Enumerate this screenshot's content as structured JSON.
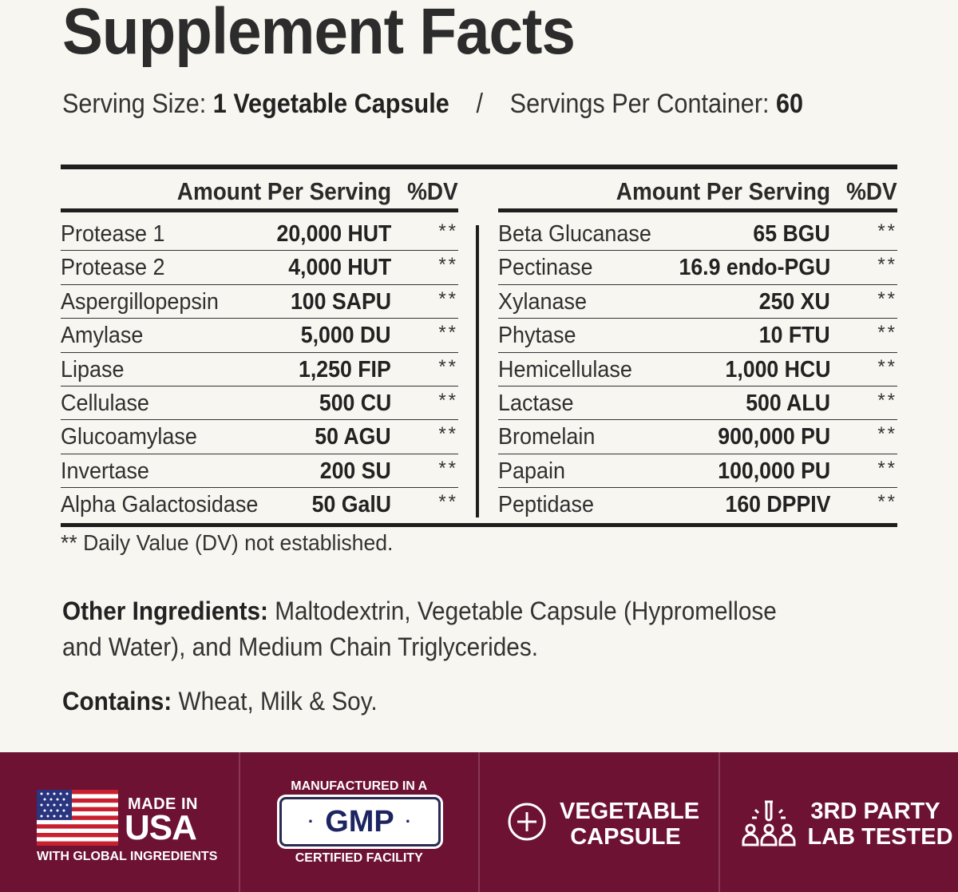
{
  "title": "Supplement Facts",
  "serving": {
    "size_label": "Serving Size:",
    "size_value": "1 Vegetable Capsule",
    "separator": "/",
    "per_container_label": "Servings Per Container:",
    "per_container_value": "60"
  },
  "table": {
    "header_amount": "Amount Per Serving",
    "header_dv": "%DV",
    "left_rows": [
      {
        "name": "Protease 1",
        "amount": "20,000 HUT",
        "dv": "**"
      },
      {
        "name": "Protease 2",
        "amount": "4,000 HUT",
        "dv": "**"
      },
      {
        "name": "Aspergillopepsin",
        "amount": "100 SAPU",
        "dv": "**"
      },
      {
        "name": "Amylase",
        "amount": "5,000 DU",
        "dv": "**"
      },
      {
        "name": "Lipase",
        "amount": "1,250 FIP",
        "dv": "**"
      },
      {
        "name": "Cellulase",
        "amount": "500 CU",
        "dv": "**"
      },
      {
        "name": "Glucoamylase",
        "amount": "50 AGU",
        "dv": "**"
      },
      {
        "name": "Invertase",
        "amount": "200 SU",
        "dv": "**"
      },
      {
        "name": "Alpha Galactosidase",
        "amount": "50 GalU",
        "dv": "**"
      }
    ],
    "right_rows": [
      {
        "name": "Beta Glucanase",
        "amount": "65 BGU",
        "dv": "**"
      },
      {
        "name": "Pectinase",
        "amount": "16.9 endo-PGU",
        "dv": "**"
      },
      {
        "name": "Xylanase",
        "amount": "250 XU",
        "dv": "**"
      },
      {
        "name": "Phytase",
        "amount": "10 FTU",
        "dv": "**"
      },
      {
        "name": "Hemicellulase",
        "amount": "1,000 HCU",
        "dv": "**"
      },
      {
        "name": "Lactase",
        "amount": "500 ALU",
        "dv": "**"
      },
      {
        "name": "Bromelain",
        "amount": "900,000 PU",
        "dv": "**"
      },
      {
        "name": "Papain",
        "amount": "100,000 PU",
        "dv": "**"
      },
      {
        "name": "Peptidase",
        "amount": "160 DPPIV",
        "dv": "**"
      }
    ]
  },
  "footnote": "** Daily Value (DV) not established.",
  "other_ingredients": {
    "label": "Other Ingredients:",
    "text": " Maltodextrin, Vegetable Capsule (Hypromellose and Water), and Medium Chain Triglycerides."
  },
  "contains": {
    "label": "Contains:",
    "text": " Wheat, Milk & Soy."
  },
  "badges": {
    "usa": {
      "made_in": "MADE IN",
      "usa": "USA",
      "global": "WITH GLOBAL INGREDIENTS",
      "icon": "us-flag-icon"
    },
    "gmp": {
      "top": "MANUFACTURED IN A",
      "mark": "GMP",
      "dot": "·",
      "bottom": "CERTIFIED FACILITY"
    },
    "vegetable": {
      "line1": "VEGETABLE",
      "line2": "CAPSULE",
      "icon": "plus-circle-icon"
    },
    "lab": {
      "line1": "3RD PARTY",
      "line2": "LAB TESTED",
      "icon": "lab-people-icon"
    }
  },
  "colors": {
    "background": "#f8f6f0",
    "band": "#6d1233",
    "text": "#2a2a2a",
    "gmp_navy": "#1d2560"
  }
}
